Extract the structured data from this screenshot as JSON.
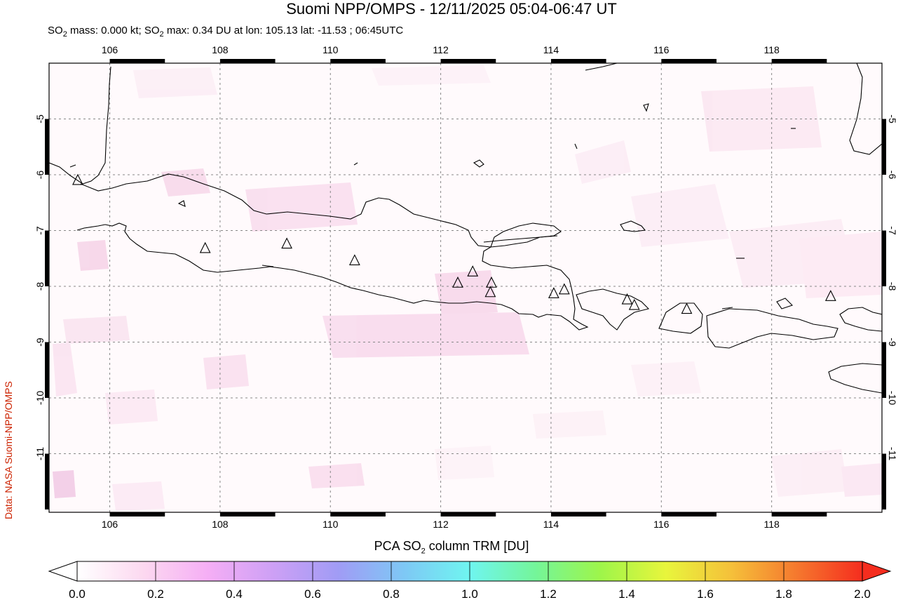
{
  "title": "Suomi NPP/OMPS - 12/11/2025 05:04-06:47 UT",
  "subtitle": {
    "prefix": "SO",
    "sub": "2",
    "mid1": " mass: 0.000 kt; SO",
    "sub2": "2",
    "rest": " max: 0.34 DU at lon: 105.13 lat: -11.53 ; 06:45UTC"
  },
  "credit": "Data: NASA Suomi-NPP/OMPS",
  "map": {
    "lon_range": [
      104.9,
      120.0
    ],
    "lat_range": [
      -12.05,
      -4.0
    ],
    "lon_ticks": [
      "106",
      "108",
      "110",
      "112",
      "114",
      "116",
      "118"
    ],
    "lat_ticks": [
      "-5",
      "-6",
      "-7",
      "-8",
      "-9",
      "-10",
      "-11"
    ],
    "volcano_marker": "triangle-icon",
    "volcanoes": [
      {
        "lon": 105.42,
        "lat": -6.1
      },
      {
        "lon": 107.73,
        "lat": -7.32
      },
      {
        "lon": 109.21,
        "lat": -7.24
      },
      {
        "lon": 110.44,
        "lat": -7.54
      },
      {
        "lon": 112.31,
        "lat": -7.94
      },
      {
        "lon": 112.58,
        "lat": -7.74
      },
      {
        "lon": 112.92,
        "lat": -7.94
      },
      {
        "lon": 112.9,
        "lat": -8.11
      },
      {
        "lon": 114.05,
        "lat": -8.13
      },
      {
        "lon": 114.24,
        "lat": -8.06
      },
      {
        "lon": 115.38,
        "lat": -8.24
      },
      {
        "lon": 115.51,
        "lat": -8.34
      },
      {
        "lon": 116.46,
        "lat": -8.41
      },
      {
        "lon": 119.07,
        "lat": -8.18
      }
    ],
    "colors": {
      "coast": "#000000",
      "grid": "#888888",
      "so2_low": "#fbe7f3"
    }
  },
  "colorbar": {
    "label_prefix": "PCA SO",
    "label_sub": "2",
    "label_suffix": " column TRM [DU]",
    "ticks": [
      "0.0",
      "0.2",
      "0.4",
      "0.6",
      "0.8",
      "1.0",
      "1.2",
      "1.4",
      "1.6",
      "1.8",
      "2.0"
    ],
    "stops": [
      "#ffffff",
      "#fcd9f0",
      "#f5aef5",
      "#cda0f5",
      "#a09cf5",
      "#7ec8f5",
      "#6ff5f0",
      "#74f59a",
      "#9ef54a",
      "#e8f53c",
      "#f5c03a",
      "#f5782e",
      "#f52d1e"
    ]
  }
}
